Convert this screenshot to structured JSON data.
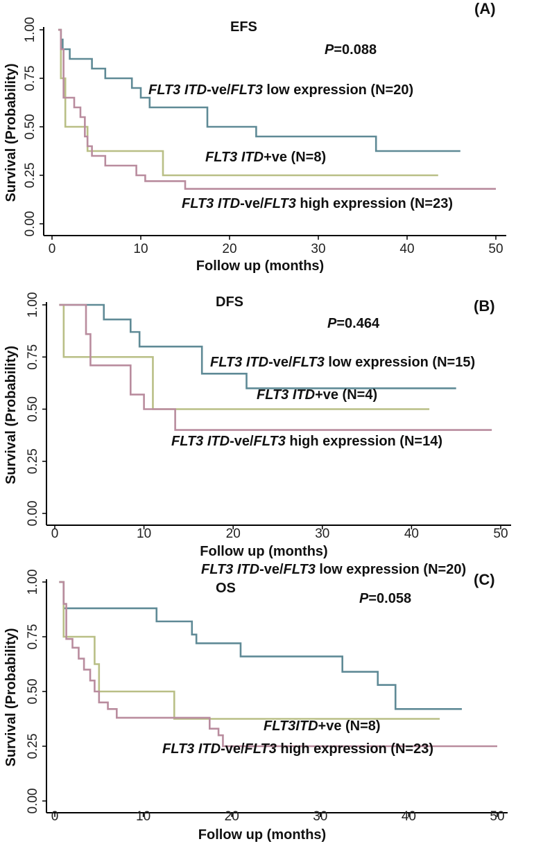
{
  "colors": {
    "low": "#5f8a96",
    "itd": "#b9bf86",
    "high": "#b98c9e"
  },
  "chart_data": [
    {
      "type": "line",
      "step": true,
      "title": "EFS",
      "panel": "(A)",
      "p_label": "P",
      "p_value": "=0.088",
      "xlabel": "Follow up (months)",
      "ylabel": "Survival (Probability)",
      "xlim": [
        0,
        50
      ],
      "ylim": [
        0,
        1
      ],
      "x_ticks": [
        "0",
        "10",
        "20",
        "30",
        "40",
        "50"
      ],
      "y_ticks": [
        "0.00",
        "0.25",
        "0.50",
        "0.75",
        "1.00"
      ],
      "series": [
        {
          "key": "low",
          "label_parts": [
            [
              "FLT3 ITD",
              true
            ],
            [
              "-ve/",
              false
            ],
            [
              "FLT3",
              true
            ],
            [
              " low expression (N=20)",
              false
            ]
          ],
          "points": [
            [
              0.7,
              1.0
            ],
            [
              1.0,
              0.95
            ],
            [
              1.2,
              0.9
            ],
            [
              2.0,
              0.85
            ],
            [
              4.5,
              0.8
            ],
            [
              6.0,
              0.75
            ],
            [
              9.0,
              0.7
            ],
            [
              10.0,
              0.65
            ],
            [
              11.0,
              0.6
            ],
            [
              17.5,
              0.5
            ],
            [
              23.0,
              0.45
            ],
            [
              36.5,
              0.375
            ],
            [
              46.0,
              0.375
            ]
          ]
        },
        {
          "key": "itd",
          "label_parts": [
            [
              "FLT3 ITD",
              true
            ],
            [
              "+ve (N=8)",
              false
            ]
          ],
          "points": [
            [
              0.7,
              1.0
            ],
            [
              1.0,
              0.75
            ],
            [
              1.5,
              0.5
            ],
            [
              4.0,
              0.375
            ],
            [
              12.5,
              0.25
            ],
            [
              43.5,
              0.25
            ]
          ]
        },
        {
          "key": "high",
          "label_parts": [
            [
              "FLT3 ITD",
              true
            ],
            [
              "-ve/",
              false
            ],
            [
              "FLT3",
              true
            ],
            [
              " high expression (N=23)",
              false
            ]
          ],
          "points": [
            [
              0.7,
              1.0
            ],
            [
              1.0,
              0.9
            ],
            [
              1.3,
              0.65
            ],
            [
              2.5,
              0.6
            ],
            [
              3.2,
              0.55
            ],
            [
              3.7,
              0.45
            ],
            [
              4.0,
              0.4
            ],
            [
              4.5,
              0.35
            ],
            [
              6.0,
              0.3
            ],
            [
              9.5,
              0.25
            ],
            [
              10.5,
              0.22
            ],
            [
              15.0,
              0.18
            ],
            [
              50.0,
              0.18
            ]
          ]
        }
      ]
    },
    {
      "type": "line",
      "step": true,
      "title": "DFS",
      "panel": "(B)",
      "p_label": "P",
      "p_value": "=0.464",
      "xlabel": "Follow up (months)",
      "ylabel": "Survival (Probability)",
      "xlim": [
        0,
        50
      ],
      "ylim": [
        0,
        1
      ],
      "x_ticks": [
        "0",
        "10",
        "20",
        "30",
        "40",
        "50"
      ],
      "y_ticks": [
        "0.00",
        "0.25",
        "0.50",
        "0.75",
        "1.00"
      ],
      "series": [
        {
          "key": "low",
          "label_parts": [
            [
              "FLT3 ITD",
              true
            ],
            [
              "-ve/",
              false
            ],
            [
              "FLT3",
              true
            ],
            [
              " low expression (N=15)",
              false
            ]
          ],
          "points": [
            [
              0.5,
              1.0
            ],
            [
              5.5,
              0.93
            ],
            [
              8.5,
              0.87
            ],
            [
              9.5,
              0.8
            ],
            [
              16.5,
              0.67
            ],
            [
              21.5,
              0.6
            ],
            [
              45.0,
              0.6
            ]
          ]
        },
        {
          "key": "itd",
          "label_parts": [
            [
              "FLT3 ITD",
              true
            ],
            [
              "+ve (N=4)",
              false
            ]
          ],
          "points": [
            [
              0.5,
              1.0
            ],
            [
              1.0,
              0.75
            ],
            [
              11.0,
              0.5
            ],
            [
              42.0,
              0.5
            ]
          ]
        },
        {
          "key": "high",
          "label_parts": [
            [
              "FLT3 ITD",
              true
            ],
            [
              "-ve/",
              false
            ],
            [
              "FLT3",
              true
            ],
            [
              " high expression (N=14)",
              false
            ]
          ],
          "points": [
            [
              0.5,
              1.0
            ],
            [
              3.5,
              0.86
            ],
            [
              4.0,
              0.71
            ],
            [
              8.5,
              0.57
            ],
            [
              10.0,
              0.5
            ],
            [
              13.5,
              0.4
            ],
            [
              49.0,
              0.4
            ]
          ]
        }
      ]
    },
    {
      "type": "line",
      "step": true,
      "title": "OS",
      "panel": "(C)",
      "p_label": "P",
      "p_value": "=0.058",
      "xlabel": "Follow up (months)",
      "ylabel": "Survival (Probability)",
      "xlim": [
        0,
        50
      ],
      "ylim": [
        0,
        1
      ],
      "x_ticks": [
        "0",
        "10",
        "20",
        "30",
        "40",
        "50"
      ],
      "y_ticks": [
        "0.00",
        "0.25",
        "0.50",
        "0.75",
        "1.00"
      ],
      "series": [
        {
          "key": "low",
          "label_parts": [
            [
              "FLT3 ITD",
              true
            ],
            [
              "-ve/",
              false
            ],
            [
              "FLT3",
              true
            ],
            [
              " low expression (N=20)",
              false
            ]
          ],
          "points": [
            [
              0.5,
              1.0
            ],
            [
              1.0,
              0.88
            ],
            [
              11.5,
              0.82
            ],
            [
              15.5,
              0.76
            ],
            [
              16.0,
              0.72
            ],
            [
              21.0,
              0.66
            ],
            [
              32.5,
              0.59
            ],
            [
              36.5,
              0.53
            ],
            [
              38.5,
              0.42
            ],
            [
              46.0,
              0.42
            ]
          ]
        },
        {
          "key": "itd",
          "label_parts": [
            [
              "FLT3ITD",
              true
            ],
            [
              "+ve (N=8)",
              false
            ]
          ],
          "points": [
            [
              0.5,
              1.0
            ],
            [
              1.0,
              0.75
            ],
            [
              4.5,
              0.625
            ],
            [
              5.0,
              0.5
            ],
            [
              13.5,
              0.375
            ],
            [
              43.5,
              0.375
            ]
          ]
        },
        {
          "key": "high",
          "label_parts": [
            [
              "FLT3 ITD",
              true
            ],
            [
              "-ve/",
              false
            ],
            [
              "FLT3",
              true
            ],
            [
              " high expression (N=23)",
              false
            ]
          ],
          "points": [
            [
              0.5,
              1.0
            ],
            [
              1.0,
              0.9
            ],
            [
              1.3,
              0.74
            ],
            [
              2.0,
              0.7
            ],
            [
              2.7,
              0.65
            ],
            [
              3.3,
              0.6
            ],
            [
              4.0,
              0.55
            ],
            [
              4.5,
              0.5
            ],
            [
              5.0,
              0.45
            ],
            [
              6.0,
              0.42
            ],
            [
              7.0,
              0.38
            ],
            [
              17.5,
              0.33
            ],
            [
              18.5,
              0.3
            ],
            [
              19.0,
              0.25
            ],
            [
              50.0,
              0.25
            ]
          ]
        }
      ]
    }
  ]
}
